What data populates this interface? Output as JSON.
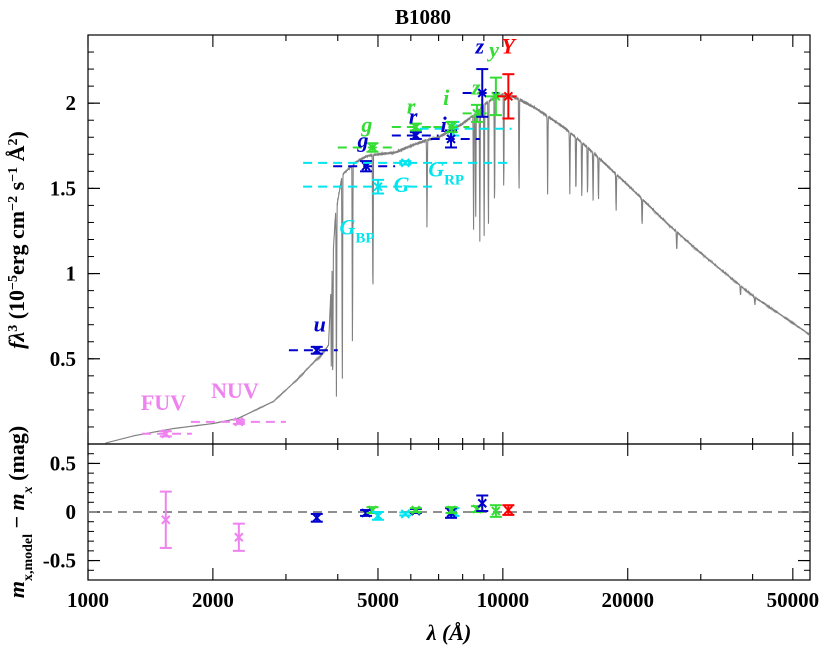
{
  "chart_data": {
    "type": "scatter",
    "title": "B1080",
    "xlabel": "λ (Å)",
    "x_scale": "log",
    "xlim": [
      1000,
      55000
    ],
    "x_ticks": [
      1000,
      2000,
      5000,
      10000,
      20000,
      50000
    ],
    "x_tick_labels": [
      "1000",
      "2000",
      "5000",
      "10000",
      "20000",
      "50000"
    ],
    "upper_panel": {
      "ylabel": "fλ³ (10⁻⁵erg cm⁻² s⁻¹ Å²)",
      "ylabel_parts": {
        "a": "f",
        "b": "λ",
        "c": "3",
        "d": " (10",
        "e": "−5",
        "f": "erg cm",
        "g": "−2",
        "h": " s",
        "i": "−1",
        "j": " Å",
        "k": "2",
        "l": ")"
      },
      "ylim": [
        0,
        2.4
      ],
      "y_ticks": [
        0.5,
        1,
        1.5,
        2
      ],
      "y_tick_labels": [
        "0.5",
        "1",
        "1.5",
        "2"
      ],
      "model_spectrum_anchors": [
        [
          1100,
          0.005
        ],
        [
          1300,
          0.05
        ],
        [
          1600,
          0.09
        ],
        [
          2000,
          0.12
        ],
        [
          2300,
          0.15
        ],
        [
          2800,
          0.25
        ],
        [
          3200,
          0.38
        ],
        [
          3500,
          0.48
        ],
        [
          3650,
          0.52
        ],
        [
          3800,
          0.58
        ],
        [
          3850,
          0.9
        ],
        [
          3950,
          1.35
        ],
        [
          4100,
          1.58
        ],
        [
          4400,
          1.65
        ],
        [
          4700,
          1.69
        ],
        [
          5000,
          1.7
        ],
        [
          5500,
          1.71
        ],
        [
          6000,
          1.75
        ],
        [
          6500,
          1.78
        ],
        [
          7000,
          1.8
        ],
        [
          7500,
          1.84
        ],
        [
          8000,
          1.88
        ],
        [
          8500,
          1.93
        ],
        [
          9000,
          1.99
        ],
        [
          9500,
          2.03
        ],
        [
          10000,
          2.05
        ],
        [
          10500,
          2.04
        ],
        [
          11000,
          2.02
        ],
        [
          12000,
          1.97
        ],
        [
          14000,
          1.86
        ],
        [
          16000,
          1.74
        ],
        [
          20000,
          1.52
        ],
        [
          25000,
          1.29
        ],
        [
          30000,
          1.12
        ],
        [
          40000,
          0.87
        ],
        [
          50000,
          0.71
        ],
        [
          55000,
          0.64
        ]
      ],
      "absorption_lines": [
        {
          "x": 3860,
          "depth": 0.6
        },
        {
          "x": 3890,
          "depth": 0.75
        },
        {
          "x": 3970,
          "depth": 0.8
        },
        {
          "x": 4102,
          "depth": 0.85
        },
        {
          "x": 4340,
          "depth": 0.7
        },
        {
          "x": 4861,
          "depth": 0.55
        },
        {
          "x": 6563,
          "depth": 0.3
        },
        {
          "x": 8500,
          "depth": 0.35
        },
        {
          "x": 8600,
          "depth": 0.35
        },
        {
          "x": 8800,
          "depth": 0.4
        },
        {
          "x": 9015,
          "depth": 0.4
        },
        {
          "x": 9230,
          "depth": 0.4
        },
        {
          "x": 9550,
          "depth": 0.35
        },
        {
          "x": 10050,
          "depth": 0.3
        },
        {
          "x": 10940,
          "depth": 0.3
        },
        {
          "x": 12820,
          "depth": 0.25
        },
        {
          "x": 14500,
          "depth": 0.2
        },
        {
          "x": 15000,
          "depth": 0.2
        },
        {
          "x": 15500,
          "depth": 0.2
        },
        {
          "x": 16000,
          "depth": 0.18
        },
        {
          "x": 16500,
          "depth": 0.18
        },
        {
          "x": 17000,
          "depth": 0.17
        },
        {
          "x": 18750,
          "depth": 0.15
        },
        {
          "x": 21660,
          "depth": 0.12
        },
        {
          "x": 26250,
          "depth": 0.1
        },
        {
          "x": 37400,
          "depth": 0.07
        },
        {
          "x": 40500,
          "depth": 0.06
        }
      ],
      "observed_points": [
        {
          "band": "FUV",
          "label": "FUV",
          "color": "#EE82EE",
          "x": 1540,
          "y": 0.06,
          "yerr": 0.015,
          "x_min": 1350,
          "x_max": 1780
        },
        {
          "band": "NUV",
          "label": "NUV",
          "color": "#EE82EE",
          "x": 2310,
          "y": 0.13,
          "yerr": 0.012,
          "x_min": 1770,
          "x_max": 3000
        },
        {
          "band": "u",
          "label": "u",
          "color": "#0000CD",
          "x": 3560,
          "y": 0.55,
          "yerr": 0.02,
          "x_min": 3050,
          "x_max": 4000
        },
        {
          "band": "g_sdss",
          "label": "g",
          "color": "#0000CD",
          "x": 4680,
          "y": 1.63,
          "yerr": 0.03,
          "x_min": 3900,
          "x_max": 5500
        },
        {
          "band": "g_ps",
          "label": "g",
          "color": "#33DD33",
          "x": 4850,
          "y": 1.74,
          "yerr": 0.025,
          "x_min": 4000,
          "x_max": 5500
        },
        {
          "band": "G_BP",
          "label": "G_BP",
          "color": "#00E5EE",
          "x": 5000,
          "y": 1.51,
          "yerr": 0.04,
          "x_min": 3300,
          "x_max": 6800
        },
        {
          "band": "G",
          "label": "G",
          "color": "#00E5EE",
          "x": 5820,
          "y": 1.65,
          "yerr": 0.01,
          "x_min": 3300,
          "x_max": 10500
        },
        {
          "band": "r_sdss",
          "label": "r",
          "color": "#0000CD",
          "x": 6170,
          "y": 1.81,
          "yerr": 0.02,
          "x_min": 5400,
          "x_max": 7000
        },
        {
          "band": "r_ps",
          "label": "r",
          "color": "#33DD33",
          "x": 6170,
          "y": 1.86,
          "yerr": 0.02,
          "x_min": 5400,
          "x_max": 7000
        },
        {
          "band": "G_RP",
          "label": "G_RP",
          "color": "#00E5EE",
          "x": 7600,
          "y": 1.85,
          "yerr": 0.04,
          "x_min": 6300,
          "x_max": 10500
        },
        {
          "band": "i_sdss",
          "label": "i",
          "color": "#0000CD",
          "x": 7500,
          "y": 1.79,
          "yerr": 0.05,
          "x_min": 6700,
          "x_max": 8800
        },
        {
          "band": "i_ps",
          "label": "i",
          "color": "#33DD33",
          "x": 7520,
          "y": 1.86,
          "yerr": 0.03,
          "x_min": 6800,
          "x_max": 8300
        },
        {
          "band": "z_ps",
          "label": "z",
          "color": "#33DD33",
          "x": 8660,
          "y": 1.94,
          "yerr": 0.05,
          "x_min": 8000,
          "x_max": 9300
        },
        {
          "band": "z_sdss",
          "label": "z",
          "color": "#0000CD",
          "x": 8920,
          "y": 2.06,
          "yerr": 0.14,
          "x_min": 8000,
          "x_max": 9800
        },
        {
          "band": "y_ps",
          "label": "y",
          "color": "#33DD33",
          "x": 9620,
          "y": 2.04,
          "yerr": 0.11,
          "x_min": 9100,
          "x_max": 10300
        },
        {
          "band": "Y",
          "label": "Y",
          "color": "#FF0000",
          "x": 10310,
          "y": 2.04,
          "yerr": 0.13,
          "x_min": 9700,
          "x_max": 10800
        }
      ],
      "band_labels": [
        {
          "text": "FUV",
          "color": "#EE82EE",
          "x": 1520,
          "y": 0.2,
          "italic": false
        },
        {
          "text": "NUV",
          "color": "#EE82EE",
          "x": 2260,
          "y": 0.27,
          "italic": false
        },
        {
          "text": "u",
          "color": "#0000CD",
          "x": 3620,
          "y": 0.66,
          "italic": true
        },
        {
          "text": "g",
          "color": "#0000CD",
          "x": 4600,
          "y": 1.74,
          "italic": true
        },
        {
          "text": "g",
          "color": "#33DD33",
          "x": 4700,
          "y": 1.83,
          "italic": true
        },
        {
          "text": "G",
          "color": "#00E5EE",
          "x": 5700,
          "y": 1.48,
          "italic": true
        },
        {
          "text": "G",
          "sub": "BP",
          "color": "#00E5EE",
          "x": 4450,
          "y": 1.23,
          "italic": true
        },
        {
          "text": "r",
          "color": "#0000CD",
          "x": 6080,
          "y": 1.88,
          "italic": true
        },
        {
          "text": "r",
          "color": "#33DD33",
          "x": 6010,
          "y": 1.94,
          "italic": true
        },
        {
          "text": "G",
          "sub": "RP",
          "color": "#00E5EE",
          "x": 7300,
          "y": 1.57,
          "italic": true
        },
        {
          "text": "i",
          "color": "#0000CD",
          "x": 7200,
          "y": 1.83,
          "italic": true
        },
        {
          "text": "i",
          "color": "#33DD33",
          "x": 7300,
          "y": 1.99,
          "italic": true
        },
        {
          "text": "z",
          "color": "#33DD33",
          "x": 8620,
          "y": 2.05,
          "italic": true
        },
        {
          "text": "z",
          "color": "#0000CD",
          "x": 8800,
          "y": 2.29,
          "italic": true
        },
        {
          "text": "y",
          "color": "#33DD33",
          "x": 9520,
          "y": 2.27,
          "italic": true
        },
        {
          "text": "Y",
          "color": "#FF0000",
          "x": 10300,
          "y": 2.29,
          "italic": true
        }
      ]
    },
    "lower_panel": {
      "ylabel": "mx,model − mx (mag)",
      "ylabel_parts": {
        "a": "m",
        "b": "x,model",
        "c": " − ",
        "d": "m",
        "e": "x",
        "f": " (mag)"
      },
      "ylim": [
        -0.7,
        0.7
      ],
      "y_ticks": [
        -0.5,
        0,
        0.5
      ],
      "y_tick_labels": [
        "-0.5",
        "0",
        "0.5"
      ],
      "zero_line": 0,
      "residuals": [
        {
          "band": "FUV",
          "color": "#EE82EE",
          "x": 1540,
          "y": -0.08,
          "yerr": 0.29
        },
        {
          "band": "NUV",
          "color": "#EE82EE",
          "x": 2310,
          "y": -0.26,
          "yerr": 0.14
        },
        {
          "band": "u",
          "color": "#0000CD",
          "x": 3560,
          "y": -0.06,
          "yerr": 0.04
        },
        {
          "band": "g_sdss",
          "color": "#0000CD",
          "x": 4680,
          "y": -0.01,
          "yerr": 0.03
        },
        {
          "band": "g_ps",
          "color": "#33DD33",
          "x": 4850,
          "y": 0.02,
          "yerr": 0.03
        },
        {
          "band": "G_BP",
          "color": "#00E5EE",
          "x": 5000,
          "y": -0.04,
          "yerr": 0.04
        },
        {
          "band": "G",
          "color": "#00E5EE",
          "x": 5820,
          "y": -0.02,
          "yerr": 0.015
        },
        {
          "band": "r_sdss",
          "color": "#0000CD",
          "x": 6170,
          "y": 0.01,
          "yerr": 0.02
        },
        {
          "band": "r_ps",
          "color": "#33DD33",
          "x": 6170,
          "y": 0.02,
          "yerr": 0.02
        },
        {
          "band": "G_RP",
          "color": "#00E5EE",
          "x": 7600,
          "y": 0.0,
          "yerr": 0.04
        },
        {
          "band": "i_sdss",
          "color": "#0000CD",
          "x": 7500,
          "y": -0.01,
          "yerr": 0.05
        },
        {
          "band": "i_ps",
          "color": "#33DD33",
          "x": 7520,
          "y": 0.02,
          "yerr": 0.03
        },
        {
          "band": "z_ps",
          "color": "#33DD33",
          "x": 8660,
          "y": 0.03,
          "yerr": 0.03
        },
        {
          "band": "z_sdss",
          "color": "#0000CD",
          "x": 8920,
          "y": 0.09,
          "yerr": 0.08
        },
        {
          "band": "y_ps",
          "color": "#33DD33",
          "x": 9620,
          "y": 0.01,
          "yerr": 0.06
        },
        {
          "band": "Y",
          "color": "#FF0000",
          "x": 10310,
          "y": 0.02,
          "yerr": 0.05
        }
      ]
    },
    "colors": {
      "spectrum": "#808080",
      "zero_line": "#808080",
      "FUV_NUV": "#EE82EE",
      "SDSS": "#0000CD",
      "PanSTARRS": "#33DD33",
      "Gaia": "#00E5EE",
      "UKIDSS_Y": "#FF0000"
    }
  }
}
